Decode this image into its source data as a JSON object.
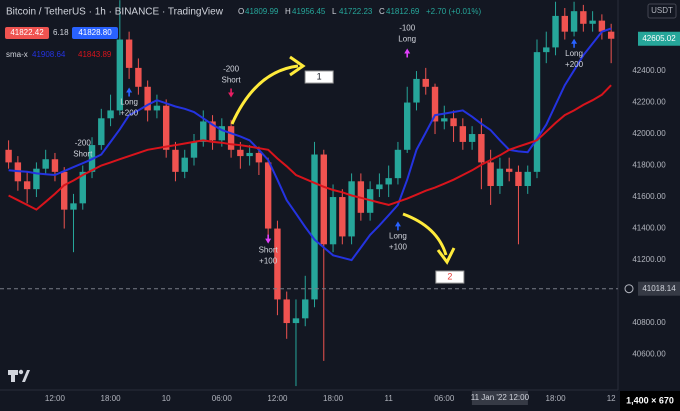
{
  "chart_data": {
    "type": "candlestick",
    "title": "Bitcoin / TetherUS · 1h · BINANCE · TradingView",
    "ohlc_header": [
      {
        "key": "O",
        "value": 41809.99
      },
      {
        "key": "H",
        "value": 41956.45
      },
      {
        "key": "L",
        "value": 41722.23
      },
      {
        "key": "C",
        "value": 41812.69
      }
    ],
    "change": "+2.70 (+0.01%)",
    "indicator_header": {
      "left": 41822.42,
      "mid": 6.18,
      "right": 41828.8,
      "right_label": "41828.80"
    },
    "sma_header": {
      "name": "sma-x",
      "values": [
        41908.64,
        41843.89
      ]
    },
    "currency": "USDT",
    "categories": [
      null,
      null,
      null,
      null,
      null,
      "12:00",
      null,
      null,
      null,
      null,
      null,
      "18:00",
      null,
      null,
      null,
      null,
      null,
      "10",
      null,
      null,
      null,
      null,
      null,
      "06:00",
      null,
      null,
      null,
      null,
      null,
      "12:00",
      null,
      null,
      null,
      null,
      null,
      "18:00",
      null,
      null,
      null,
      null,
      null,
      "11",
      null,
      null,
      null,
      null,
      null,
      "06:00",
      null,
      null,
      null,
      null,
      null,
      "11 Jan '22  12:00",
      null,
      null,
      null,
      null,
      null,
      "18:00",
      null,
      null,
      null,
      null,
      null,
      "12"
    ],
    "open": [
      41900,
      41820,
      41700,
      41650,
      41780,
      41840,
      41760,
      41520,
      41560,
      41760,
      41930,
      42100,
      42150,
      42600,
      42420,
      42300,
      42150,
      42180,
      41900,
      41760,
      41850,
      41950,
      42080,
      41960,
      42050,
      41900,
      41860,
      41880,
      41820,
      41400,
      40950,
      40800,
      40830,
      40950,
      41870,
      41300,
      41600,
      41350,
      41700,
      41500,
      41650,
      41680,
      41720,
      41900,
      42200,
      42350,
      42300,
      42080,
      42100,
      42050,
      41950,
      42000,
      41820,
      41670,
      41780,
      41760,
      41670,
      41760,
      42520,
      42550,
      42750,
      42650,
      42780,
      42700,
      42720,
      42650
    ],
    "high": [
      41960,
      41860,
      41760,
      41820,
      41900,
      41880,
      41790,
      41620,
      41800,
      41980,
      42160,
      42250,
      42850,
      42650,
      42480,
      42340,
      42250,
      42220,
      41950,
      41900,
      42000,
      42150,
      42120,
      42100,
      42090,
      41950,
      41930,
      41920,
      41850,
      41450,
      41000,
      40950,
      41100,
      41950,
      41900,
      41680,
      41650,
      41750,
      41750,
      41700,
      41750,
      41800,
      41950,
      42300,
      42400,
      42420,
      42320,
      42180,
      42150,
      42100,
      42050,
      42100,
      41900,
      41850,
      41850,
      41800,
      41800,
      42600,
      42650,
      42840,
      42800,
      42840,
      42820,
      42780,
      42760,
      42700
    ],
    "low": [
      41780,
      41640,
      41560,
      41600,
      41740,
      41700,
      41400,
      41250,
      41520,
      41720,
      41900,
      42050,
      42120,
      42350,
      42250,
      42080,
      42100,
      41850,
      41700,
      41720,
      41800,
      41920,
      41900,
      41920,
      41850,
      41780,
      41800,
      41740,
      41350,
      40850,
      40700,
      40400,
      40780,
      40900,
      40560,
      41250,
      41300,
      41300,
      41450,
      41450,
      41600,
      41600,
      41680,
      41880,
      42150,
      42250,
      42000,
      42030,
      41950,
      41900,
      41900,
      41650,
      41550,
      41620,
      41700,
      41300,
      41620,
      41720,
      42450,
      42500,
      42600,
      42620,
      42650,
      42650,
      42600,
      42450
    ],
    "close": [
      41820,
      41700,
      41650,
      41780,
      41840,
      41760,
      41520,
      41560,
      41760,
      41930,
      42100,
      42150,
      42600,
      42420,
      42300,
      42150,
      42180,
      41900,
      41760,
      41850,
      41950,
      42080,
      41960,
      42050,
      41900,
      41860,
      41880,
      41820,
      41400,
      40950,
      40800,
      40830,
      40950,
      41870,
      41300,
      41600,
      41350,
      41700,
      41500,
      41650,
      41680,
      41720,
      41900,
      42200,
      42350,
      42300,
      42080,
      42100,
      42050,
      41950,
      42000,
      41820,
      41670,
      41780,
      41760,
      41670,
      41760,
      42520,
      42550,
      42750,
      42650,
      42780,
      42700,
      42720,
      42650,
      42605
    ],
    "up_color": "#26a69a",
    "down_color": "#ef5350",
    "series": [
      {
        "color": "#2433e0",
        "values": [
          41770,
          41765,
          41760,
          41750,
          41745,
          41740,
          41765,
          41790,
          41815,
          41840,
          41870,
          41950,
          42030,
          42120,
          42150,
          42185,
          42215,
          42195,
          42175,
          42160,
          42140,
          42100,
          42060,
          42025,
          42005,
          41985,
          41960,
          41900,
          41835,
          41710,
          41580,
          41495,
          41410,
          41330,
          41280,
          41230,
          41215,
          41200,
          41280,
          41360,
          41420,
          41485,
          41550,
          41710,
          41900,
          42010,
          42120,
          42130,
          42140,
          42150,
          42110,
          42065,
          42025,
          41960,
          41900,
          41890,
          41885,
          41970,
          42060,
          42185,
          42310,
          42405,
          42500,
          42575,
          42650,
          42670
        ]
      },
      {
        "color": "#d8141c",
        "values": [
          41610,
          41580,
          41550,
          41520,
          41570,
          41620,
          41675,
          41705,
          41740,
          41770,
          41800,
          41820,
          41840,
          41860,
          41880,
          41900,
          41910,
          41920,
          41930,
          41940,
          41950,
          41960,
          41950,
          41945,
          41935,
          41930,
          41920,
          41910,
          41900,
          41845,
          41795,
          41740,
          41715,
          41690,
          41665,
          41645,
          41630,
          41610,
          41595,
          41580,
          41565,
          41550,
          41570,
          41590,
          41615,
          41640,
          41660,
          41685,
          41710,
          41740,
          41770,
          41805,
          41835,
          41865,
          41900,
          41920,
          41940,
          41960,
          42015,
          42070,
          42120,
          42150,
          42185,
          42215,
          42250,
          42310
        ]
      }
    ],
    "ylim": [
      40375,
      42851
    ],
    "yticks": [
      {
        "value": 40600,
        "label": "40600.00"
      },
      {
        "value": 40800,
        "label": "40800.00"
      },
      {
        "value": 41200,
        "label": "41200.00"
      },
      {
        "value": 41400,
        "label": "41400.00"
      },
      {
        "value": 41600,
        "label": "41600.00"
      },
      {
        "value": 41800,
        "label": "41800.00"
      },
      {
        "value": 42000,
        "label": "42000.00"
      },
      {
        "value": 42200,
        "label": "42200.00"
      },
      {
        "value": 42400,
        "label": "42400.00"
      }
    ],
    "grid": true,
    "last_price": 42605.02,
    "crosshair": {
      "x": 53,
      "y": 41018.14
    },
    "signals": [
      {
        "x": 8,
        "y": 41940,
        "lines": [
          "-200",
          "Short"
        ]
      },
      {
        "x": 13,
        "y": 42200,
        "lines": [
          "Long",
          "+200"
        ],
        "arrow": "above",
        "direction": "up",
        "color": "#2962ff"
      },
      {
        "x": 24,
        "y": 42410,
        "lines": [
          "-200",
          "Short"
        ],
        "arrow": "below",
        "direction": "down",
        "color": "#e91e63"
      },
      {
        "x": 28,
        "y": 41260,
        "lines": [
          "Short",
          "+100"
        ],
        "arrow": "above",
        "direction": "down",
        "color": "#e040fb"
      },
      {
        "x": 43,
        "y": 42670,
        "lines": [
          "-100",
          "Long"
        ],
        "arrow": "below",
        "direction": "up",
        "color": "#e040fb"
      },
      {
        "x": 42,
        "y": 41350,
        "lines": [
          "Long",
          "+100"
        ],
        "arrow": "above",
        "direction": "up",
        "color": "#2962ff"
      },
      {
        "x": 61,
        "y": 42510,
        "lines": [
          "Long",
          "+200"
        ],
        "arrow": "above",
        "direction": "up",
        "color": "#2962ff"
      }
    ],
    "callouts": [
      {
        "x": 33.5,
        "y": 42362,
        "text": "1",
        "color": "#131722"
      },
      {
        "x": 47.6,
        "y": 41092,
        "text": "2",
        "color": "#e53935"
      }
    ],
    "resolution": "1,400 × 670"
  }
}
